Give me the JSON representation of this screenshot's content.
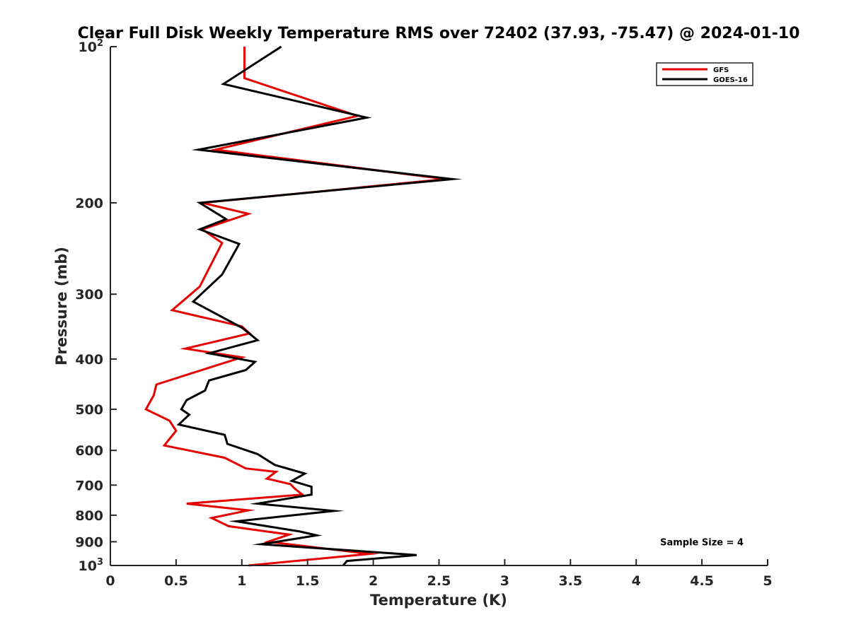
{
  "chart_data": {
    "type": "line",
    "title": "Clear Full Disk Weekly Temperature RMS over 72402 (37.93, -75.47) @ 2024-01-10",
    "xlabel": "Temperature (K)",
    "ylabel": "Pressure (mb)",
    "xlim": [
      0,
      5
    ],
    "ylim": [
      100,
      1000
    ],
    "y_scale": "log",
    "y_reversed": true,
    "grid": false,
    "legend_position": "top-right",
    "x_ticks": [
      {
        "value": 0,
        "label": "0"
      },
      {
        "value": 0.5,
        "label": "0.5"
      },
      {
        "value": 1,
        "label": "1"
      },
      {
        "value": 1.5,
        "label": "1.5"
      },
      {
        "value": 2,
        "label": "2"
      },
      {
        "value": 2.5,
        "label": "2.5"
      },
      {
        "value": 3,
        "label": "3"
      },
      {
        "value": 3.5,
        "label": "3.5"
      },
      {
        "value": 4,
        "label": "4"
      },
      {
        "value": 4.5,
        "label": "4.5"
      },
      {
        "value": 5,
        "label": "5"
      }
    ],
    "y_ticks": [
      {
        "value": 100,
        "base": "10",
        "exp": "2"
      },
      {
        "value": 200,
        "label": "200"
      },
      {
        "value": 300,
        "label": "300"
      },
      {
        "value": 400,
        "label": "400"
      },
      {
        "value": 500,
        "label": "500"
      },
      {
        "value": 600,
        "label": "600"
      },
      {
        "value": 700,
        "label": "700"
      },
      {
        "value": 800,
        "label": "800"
      },
      {
        "value": 900,
        "label": "900"
      },
      {
        "value": 1000,
        "base": "10",
        "exp": "3"
      }
    ],
    "series": [
      {
        "name": "GFS",
        "color": "#e60000",
        "points": [
          [
            1.02,
            100
          ],
          [
            1.02,
            115
          ],
          [
            1.88,
            136
          ],
          [
            0.8,
            158
          ],
          [
            2.55,
            180
          ],
          [
            0.7,
            200
          ],
          [
            1.05,
            210
          ],
          [
            0.7,
            225
          ],
          [
            0.85,
            239
          ],
          [
            0.68,
            290
          ],
          [
            0.47,
            322
          ],
          [
            1.0,
            346
          ],
          [
            1.06,
            357
          ],
          [
            0.57,
            382
          ],
          [
            1.0,
            397
          ],
          [
            0.35,
            448
          ],
          [
            0.33,
            470
          ],
          [
            0.27,
            500
          ],
          [
            0.45,
            526
          ],
          [
            0.5,
            550
          ],
          [
            0.41,
            587
          ],
          [
            0.87,
            620
          ],
          [
            1.03,
            650
          ],
          [
            1.26,
            660
          ],
          [
            1.19,
            680
          ],
          [
            1.37,
            697
          ],
          [
            1.4,
            710
          ],
          [
            1.46,
            730
          ],
          [
            0.58,
            760
          ],
          [
            1.05,
            783
          ],
          [
            0.77,
            810
          ],
          [
            0.9,
            840
          ],
          [
            1.36,
            872
          ],
          [
            1.2,
            900
          ],
          [
            1.97,
            950
          ],
          [
            1.05,
            1000
          ]
        ]
      },
      {
        "name": "GOES-16",
        "color": "#000000",
        "points": [
          [
            1.3,
            100
          ],
          [
            0.86,
            118
          ],
          [
            1.95,
            137
          ],
          [
            0.67,
            158
          ],
          [
            2.6,
            180
          ],
          [
            0.68,
            200
          ],
          [
            0.88,
            215
          ],
          [
            0.68,
            225
          ],
          [
            0.98,
            240
          ],
          [
            0.85,
            275
          ],
          [
            0.63,
            310
          ],
          [
            1.0,
            348
          ],
          [
            1.12,
            368
          ],
          [
            0.75,
            390
          ],
          [
            1.1,
            405
          ],
          [
            1.03,
            420
          ],
          [
            0.75,
            440
          ],
          [
            0.72,
            460
          ],
          [
            0.58,
            480
          ],
          [
            0.54,
            500
          ],
          [
            0.6,
            512
          ],
          [
            0.52,
            535
          ],
          [
            0.87,
            560
          ],
          [
            0.89,
            583
          ],
          [
            1.12,
            610
          ],
          [
            1.25,
            640
          ],
          [
            1.48,
            665
          ],
          [
            1.38,
            687
          ],
          [
            1.53,
            705
          ],
          [
            1.53,
            730
          ],
          [
            1.12,
            760
          ],
          [
            1.7,
            785
          ],
          [
            0.96,
            822
          ],
          [
            1.44,
            860
          ],
          [
            1.57,
            875
          ],
          [
            1.15,
            910
          ],
          [
            2.33,
            955
          ],
          [
            1.8,
            980
          ],
          [
            1.77,
            1000
          ]
        ]
      }
    ],
    "annotations": [
      {
        "text": "Sample Size = 4",
        "x": 4.5,
        "y": 900
      }
    ]
  }
}
